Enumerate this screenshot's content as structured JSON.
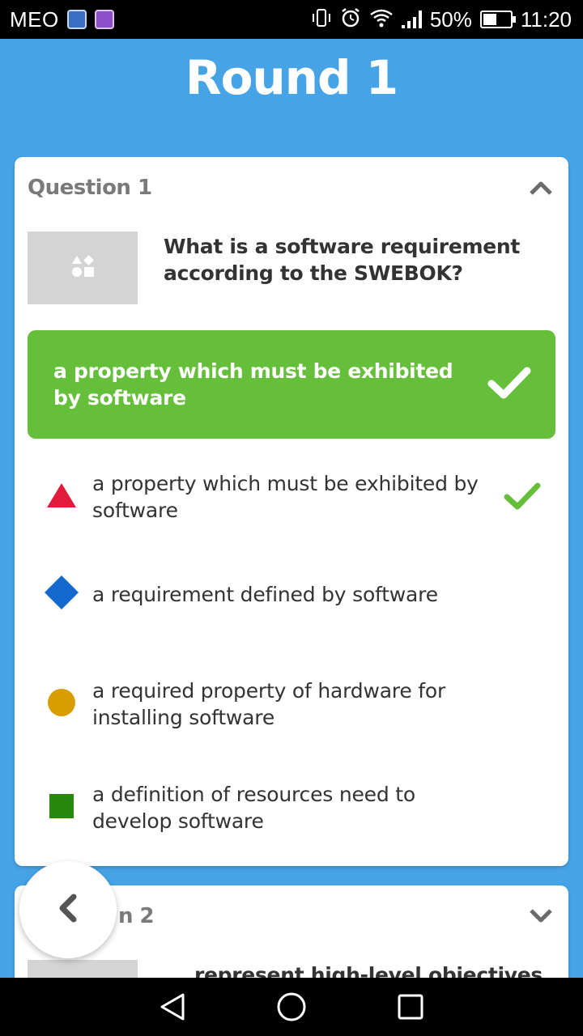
{
  "status_bar": {
    "carrier": "MEO",
    "battery_percent": "50%",
    "battery_level": 0.5,
    "time": "11:20"
  },
  "title": "Round 1",
  "question1": {
    "label": "Question 1",
    "text": "What is a software requirement according to the SWEBOK?",
    "correct_answer": "a property which must be exhibited by software",
    "answers": [
      {
        "text": "a property which must be exhibited by software",
        "shape": "triangle",
        "color": "#e21b3c",
        "correct": true
      },
      {
        "text": "a requirement defined by software",
        "shape": "diamond",
        "color": "#1368ce",
        "correct": false
      },
      {
        "text": "a required property of hardware for installing software",
        "shape": "circle",
        "color": "#d89e00",
        "correct": false
      },
      {
        "text": "a definition of resources need to develop software",
        "shape": "square",
        "color": "#26890c",
        "correct": false
      }
    ]
  },
  "question2": {
    "label_visible": "n 2",
    "text": "represent high-level objectives"
  },
  "colors": {
    "background": "#46a3e6",
    "correct_green": "#66bf3a",
    "check_green": "#66bf3a"
  },
  "icons": {
    "collapse": "chevron-up-icon",
    "expand": "chevron-down-icon",
    "back": "chevron-left-icon",
    "image_placeholder": "shapes-icon"
  }
}
